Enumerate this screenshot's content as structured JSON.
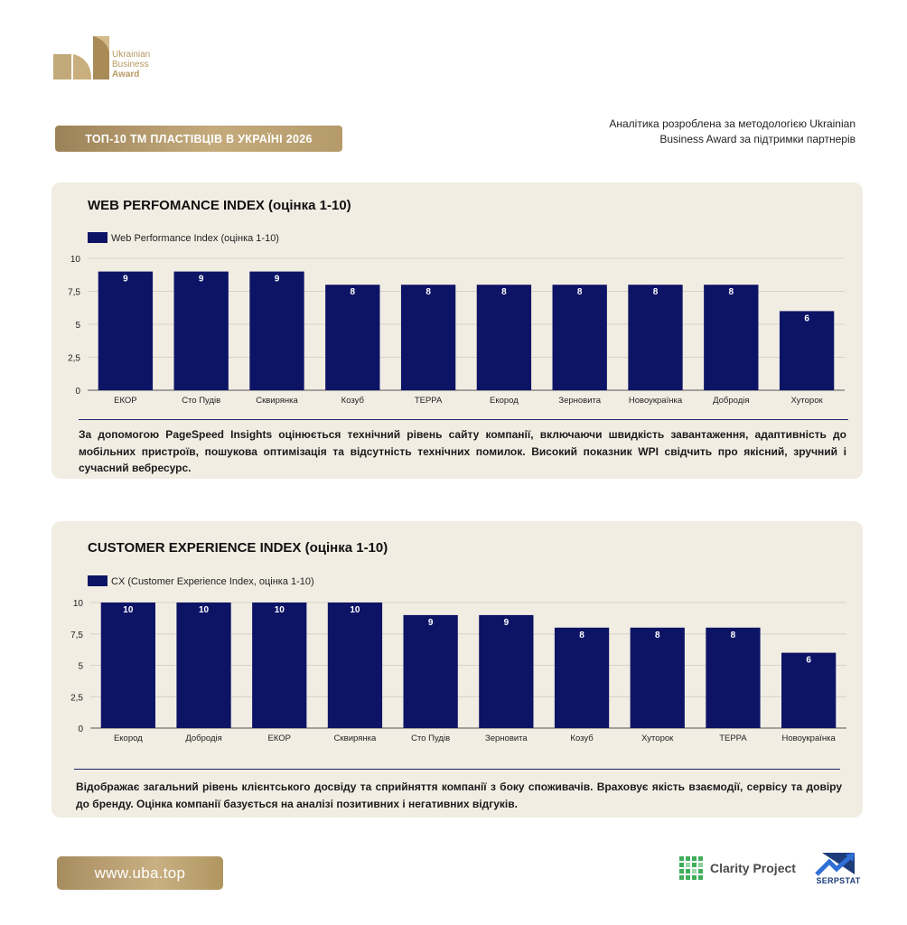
{
  "brand": {
    "logo_lines": [
      "Ukrainian",
      "Business",
      "Award"
    ],
    "gold": "#b79a62"
  },
  "header": {
    "title": "ТОП-10 ТМ ПЛАСТІВЦІВ В УКРАЇНІ 2026",
    "note": "Аналітика розроблена за методологією Ukrainian Business Award за підтримки партнерів"
  },
  "footer": {
    "url": "www.uba.top",
    "partner1": "Clarity Project",
    "partner2": "SERPSTAT"
  },
  "chart_data": [
    {
      "type": "bar",
      "title": "WEB PERFOMANCE INDEX (оцінка 1-10)",
      "legend": "Web Performance Index (оцінка 1-10)",
      "legend_position": "top-left",
      "categories": [
        "ЕКОР",
        "Сто Пудів",
        "Сквирянка",
        "Козуб",
        "ТЕРРА",
        "Екород",
        "Зерновита",
        "Новоукраїнка",
        "Добродія",
        "Хуторок"
      ],
      "values": [
        9,
        9,
        9,
        8,
        8,
        8,
        8,
        8,
        8,
        6
      ],
      "yticks": [
        "0",
        "2,5",
        "5",
        "7,5",
        "10"
      ],
      "ylim": [
        0,
        10
      ],
      "grid": true,
      "bar_color": "#0d1466",
      "description": "За допомогою PageSpeed Insights оцінюється технічний рівень сайту компанії, включаючи швидкість завантаження, адаптивність до мобільних пристроїв, пошукова оптимізація та відсутність технічних помилок. Високий показник WPI свідчить про якісний, зручний і сучасний вебресурс."
    },
    {
      "type": "bar",
      "title": "CUSTOMER EXPERIENCE INDEX (оцінка 1-10)",
      "legend": "CX (Customer Experience Index, оцінка 1-10)",
      "legend_position": "top-left",
      "categories": [
        "Екород",
        "Добродія",
        "ЕКОР",
        "Сквирянка",
        "Сто Пудів",
        "Зерновита",
        "Козуб",
        "Хуторок",
        "ТЕРРА",
        "Новоукраїнка"
      ],
      "values": [
        10,
        10,
        10,
        10,
        9,
        9,
        8,
        8,
        8,
        6
      ],
      "yticks": [
        "0",
        "2,5",
        "5",
        "7,5",
        "10"
      ],
      "ylim": [
        0,
        10
      ],
      "grid": true,
      "bar_color": "#0d1466",
      "description": "Відображає загальний рівень клієнтського досвіду та сприйняття компанії з боку споживачів. Враховує якість взаємодії, сервісу та довіру до бренду. Оцінка компанії базується на аналізі позитивних і негативних відгуків."
    }
  ]
}
